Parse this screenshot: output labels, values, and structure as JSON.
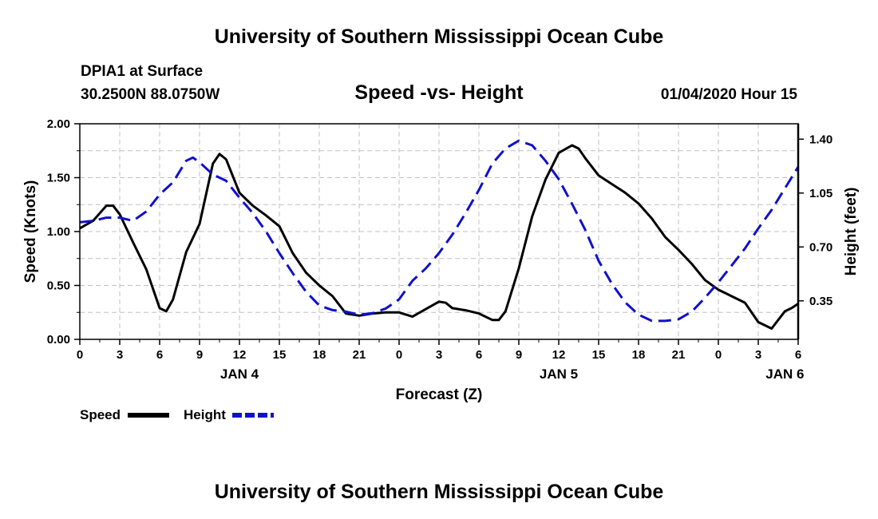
{
  "header": {
    "title": "University of Southern Mississippi Ocean Cube",
    "station": "DPIA1 at Surface",
    "coords": "30.2500N 88.0750W",
    "plot_title": "Speed -vs- Height",
    "datetime": "01/04/2020 Hour 15"
  },
  "footer": {
    "title": "University of Southern Mississippi Ocean Cube"
  },
  "colors": {
    "speed": "#000000",
    "height": "#1010cc",
    "grid": "#c0c0c0"
  },
  "chart_data": {
    "type": "line",
    "title": "Speed -vs- Height",
    "xlabel": "Forecast (Z)",
    "ylabel": "Speed (Knots)",
    "y2label": "Height (feet)",
    "x_range": [
      0,
      54
    ],
    "x_ticks": [
      0,
      3,
      6,
      9,
      12,
      15,
      18,
      21,
      24,
      27,
      30,
      33,
      36,
      39,
      42,
      45,
      48,
      51,
      54
    ],
    "x_tick_labels": [
      "0",
      "3",
      "6",
      "9",
      "12",
      "15",
      "18",
      "21",
      "0",
      "3",
      "6",
      "9",
      "12",
      "15",
      "18",
      "21",
      "0",
      "3",
      "6"
    ],
    "date_labels": [
      {
        "x": 12,
        "label": "JAN 4"
      },
      {
        "x": 36,
        "label": "JAN 5"
      },
      {
        "x": 53,
        "label": "JAN 6"
      }
    ],
    "ylim": [
      0,
      2
    ],
    "y_ticks": [
      0,
      0.5,
      1,
      1.5,
      2
    ],
    "y_tick_labels": [
      "0.00",
      "0.50",
      "1.00",
      "1.50",
      "2.00"
    ],
    "y2lim": [
      0.1,
      1.5
    ],
    "y2_ticks": [
      0.35,
      0.7,
      1.05,
      1.4
    ],
    "y2_tick_labels": [
      "0.35",
      "0.70",
      "1.05",
      "1.40"
    ],
    "grid": true,
    "legend": {
      "position": "bottom-left",
      "entries": [
        {
          "name": "Speed",
          "style": "solid"
        },
        {
          "name": "Height",
          "style": "dashed"
        }
      ]
    },
    "series": [
      {
        "name": "Speed",
        "axis": "left",
        "style": "solid",
        "x": [
          0,
          1,
          2,
          2.5,
          3,
          4,
          5,
          6,
          6.5,
          7,
          8,
          9,
          10,
          10.5,
          11,
          12,
          13,
          14,
          15,
          16,
          17,
          18,
          19,
          20,
          21,
          22,
          23,
          24,
          25,
          26,
          27,
          27.5,
          28,
          29,
          30,
          31,
          31.5,
          32,
          33,
          34,
          35,
          36,
          37,
          37.5,
          38,
          39,
          40,
          41,
          42,
          43,
          44,
          45,
          46,
          47,
          48,
          48.5,
          49,
          50,
          51,
          52,
          53,
          53.5,
          54
        ],
        "y": [
          1.03,
          1.1,
          1.24,
          1.24,
          1.16,
          0.9,
          0.65,
          0.29,
          0.26,
          0.37,
          0.81,
          1.07,
          1.63,
          1.72,
          1.67,
          1.36,
          1.24,
          1.15,
          1.05,
          0.8,
          0.62,
          0.5,
          0.4,
          0.24,
          0.22,
          0.24,
          0.25,
          0.25,
          0.21,
          0.28,
          0.35,
          0.34,
          0.29,
          0.27,
          0.24,
          0.18,
          0.18,
          0.26,
          0.66,
          1.14,
          1.48,
          1.73,
          1.8,
          1.77,
          1.68,
          1.52,
          1.44,
          1.36,
          1.26,
          1.12,
          0.95,
          0.83,
          0.7,
          0.55,
          0.46,
          0.43,
          0.4,
          0.34,
          0.16,
          0.1,
          0.26,
          0.29,
          0.33
        ]
      },
      {
        "name": "Height",
        "axis": "right",
        "style": "dashed",
        "x": [
          0,
          1,
          2,
          3,
          4,
          5,
          6,
          7,
          8,
          8.5,
          9,
          10,
          11,
          12,
          13,
          14,
          15,
          16,
          17,
          18,
          19,
          20,
          21,
          22,
          23,
          24,
          25,
          26,
          27,
          28,
          29,
          30,
          31,
          32,
          33,
          34,
          35,
          36,
          37,
          38,
          39,
          40,
          41,
          42,
          43,
          44,
          45,
          46,
          47,
          48,
          49,
          50,
          51,
          52,
          53,
          54
        ],
        "y": [
          0.86,
          0.87,
          0.89,
          0.89,
          0.87,
          0.93,
          1.04,
          1.12,
          1.26,
          1.28,
          1.25,
          1.17,
          1.13,
          1.02,
          0.92,
          0.8,
          0.66,
          0.53,
          0.41,
          0.32,
          0.29,
          0.28,
          0.26,
          0.27,
          0.3,
          0.36,
          0.48,
          0.56,
          0.66,
          0.78,
          0.92,
          1.07,
          1.24,
          1.34,
          1.39,
          1.36,
          1.26,
          1.14,
          0.98,
          0.81,
          0.61,
          0.46,
          0.34,
          0.26,
          0.22,
          0.22,
          0.23,
          0.28,
          0.37,
          0.47,
          0.58,
          0.69,
          0.82,
          0.94,
          1.08,
          1.22
        ]
      }
    ]
  }
}
